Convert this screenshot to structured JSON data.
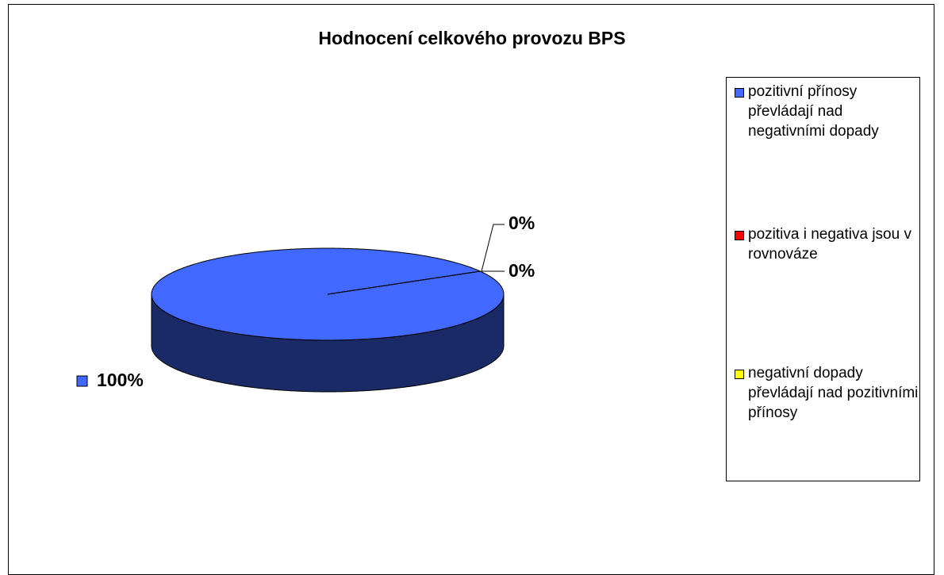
{
  "chart_data": {
    "type": "pie",
    "title": "Hodnocení celkového provozu BPS",
    "categories": [
      "pozitivní přínosy převládají nad negativními dopady",
      "pozitiva i negativa jsou v rovnováze",
      "negativní dopady převládají nad pozitivními přínosy"
    ],
    "values": [
      100,
      0,
      0
    ],
    "value_labels": [
      "100%",
      "0%",
      "0%"
    ],
    "colors": [
      "#4169ff",
      "#ff0000",
      "#ffff00"
    ],
    "legend": "right"
  }
}
